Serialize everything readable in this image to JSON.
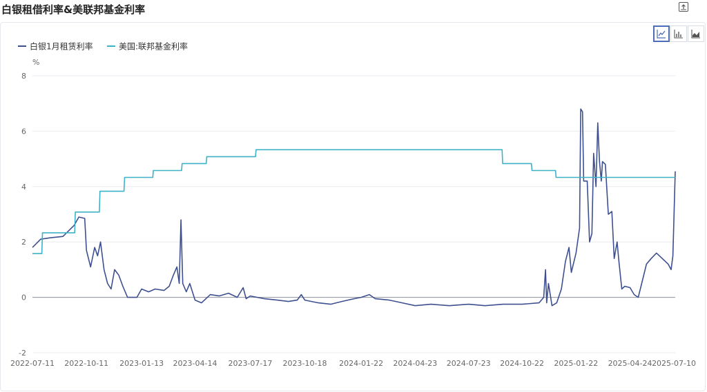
{
  "header": {
    "title": "白银租借利率&美联邦基金利率",
    "export_icon": "export-icon"
  },
  "view_switches": [
    {
      "icon": "line-chart-icon",
      "active": true
    },
    {
      "icon": "bar-chart-icon",
      "active": false
    },
    {
      "icon": "area-chart-icon",
      "active": false
    }
  ],
  "chart_data": {
    "type": "line",
    "title": "白银租借利率&美联邦基金利率",
    "ylabel": "%",
    "ylim": [
      -2,
      8
    ],
    "yticks": [
      "-2",
      "0",
      "2",
      "4",
      "6",
      "8"
    ],
    "xlabels": [
      "2022-07-11",
      "2022-10-11",
      "2023-01-13",
      "2023-04-14",
      "2023-07-17",
      "2023-10-18",
      "2024-01-22",
      "2024-04-23",
      "2024-07-23",
      "2024-10-22",
      "2025-01-22",
      "2025-04-24",
      "2025-07-10"
    ],
    "grid": true,
    "legend_position": "top-left",
    "series": [
      {
        "name": "白银1月租赁利率",
        "color": "#3d4f8f",
        "points": [
          [
            "2022-07-11",
            1.8
          ],
          [
            "2022-07-25",
            2.1
          ],
          [
            "2022-08-10",
            2.15
          ],
          [
            "2022-09-01",
            2.2
          ],
          [
            "2022-09-20",
            2.6
          ],
          [
            "2022-09-28",
            2.9
          ],
          [
            "2022-10-08",
            2.85
          ],
          [
            "2022-10-11",
            1.7
          ],
          [
            "2022-10-18",
            1.1
          ],
          [
            "2022-10-25",
            1.8
          ],
          [
            "2022-10-30",
            1.5
          ],
          [
            "2022-11-04",
            2.0
          ],
          [
            "2022-11-10",
            1.0
          ],
          [
            "2022-11-16",
            0.5
          ],
          [
            "2022-11-22",
            0.3
          ],
          [
            "2022-11-28",
            1.0
          ],
          [
            "2022-12-05",
            0.8
          ],
          [
            "2022-12-12",
            0.4
          ],
          [
            "2022-12-20",
            0.0
          ],
          [
            "2023-01-05",
            0.0
          ],
          [
            "2023-01-13",
            0.3
          ],
          [
            "2023-01-25",
            0.2
          ],
          [
            "2023-02-05",
            0.3
          ],
          [
            "2023-02-20",
            0.25
          ],
          [
            "2023-03-01",
            0.4
          ],
          [
            "2023-03-08",
            0.8
          ],
          [
            "2023-03-14",
            1.1
          ],
          [
            "2023-03-18",
            0.5
          ],
          [
            "2023-03-21",
            2.8
          ],
          [
            "2023-03-24",
            0.5
          ],
          [
            "2023-03-30",
            0.2
          ],
          [
            "2023-04-05",
            0.5
          ],
          [
            "2023-04-14",
            -0.1
          ],
          [
            "2023-04-25",
            -0.2
          ],
          [
            "2023-05-10",
            0.1
          ],
          [
            "2023-05-25",
            0.05
          ],
          [
            "2023-06-10",
            0.15
          ],
          [
            "2023-06-25",
            0.0
          ],
          [
            "2023-07-05",
            0.35
          ],
          [
            "2023-07-10",
            -0.05
          ],
          [
            "2023-07-17",
            0.05
          ],
          [
            "2023-08-10",
            -0.05
          ],
          [
            "2023-09-01",
            -0.1
          ],
          [
            "2023-09-20",
            -0.15
          ],
          [
            "2023-10-05",
            -0.1
          ],
          [
            "2023-10-12",
            0.1
          ],
          [
            "2023-10-18",
            -0.1
          ],
          [
            "2023-11-10",
            -0.2
          ],
          [
            "2023-12-01",
            -0.25
          ],
          [
            "2023-12-20",
            -0.15
          ],
          [
            "2024-01-10",
            -0.05
          ],
          [
            "2024-01-22",
            0.0
          ],
          [
            "2024-02-05",
            0.1
          ],
          [
            "2024-02-15",
            -0.05
          ],
          [
            "2024-03-10",
            -0.1
          ],
          [
            "2024-04-01",
            -0.2
          ],
          [
            "2024-04-23",
            -0.3
          ],
          [
            "2024-05-20",
            -0.25
          ],
          [
            "2024-06-20",
            -0.3
          ],
          [
            "2024-07-23",
            -0.25
          ],
          [
            "2024-08-20",
            -0.3
          ],
          [
            "2024-09-20",
            -0.25
          ],
          [
            "2024-10-22",
            -0.25
          ],
          [
            "2024-11-20",
            -0.2
          ],
          [
            "2024-11-28",
            0.0
          ],
          [
            "2024-12-01",
            1.0
          ],
          [
            "2024-12-03",
            -0.2
          ],
          [
            "2024-12-06",
            0.5
          ],
          [
            "2024-12-12",
            -0.3
          ],
          [
            "2024-12-20",
            -0.2
          ],
          [
            "2024-12-28",
            0.3
          ],
          [
            "2025-01-04",
            1.3
          ],
          [
            "2025-01-10",
            1.8
          ],
          [
            "2025-01-14",
            0.9
          ],
          [
            "2025-01-22",
            1.6
          ],
          [
            "2025-01-28",
            2.5
          ],
          [
            "2025-01-30",
            6.8
          ],
          [
            "2025-02-02",
            6.7
          ],
          [
            "2025-02-04",
            4.2
          ],
          [
            "2025-02-10",
            4.2
          ],
          [
            "2025-02-14",
            2.0
          ],
          [
            "2025-02-18",
            2.3
          ],
          [
            "2025-02-21",
            5.2
          ],
          [
            "2025-02-25",
            4.0
          ],
          [
            "2025-02-28",
            6.3
          ],
          [
            "2025-03-03",
            4.9
          ],
          [
            "2025-03-06",
            4.2
          ],
          [
            "2025-03-08",
            4.9
          ],
          [
            "2025-03-13",
            4.8
          ],
          [
            "2025-03-18",
            3.0
          ],
          [
            "2025-03-24",
            3.1
          ],
          [
            "2025-03-28",
            1.4
          ],
          [
            "2025-04-02",
            2.0
          ],
          [
            "2025-04-05",
            1.3
          ],
          [
            "2025-04-10",
            0.3
          ],
          [
            "2025-04-15",
            0.4
          ],
          [
            "2025-04-24",
            0.35
          ],
          [
            "2025-05-01",
            0.1
          ],
          [
            "2025-05-08",
            0.0
          ],
          [
            "2025-05-15",
            0.6
          ],
          [
            "2025-05-22",
            1.2
          ],
          [
            "2025-05-30",
            1.4
          ],
          [
            "2025-06-08",
            1.6
          ],
          [
            "2025-06-18",
            1.4
          ],
          [
            "2025-06-28",
            1.2
          ],
          [
            "2025-07-03",
            1.0
          ],
          [
            "2025-07-06",
            1.5
          ],
          [
            "2025-07-10",
            4.55
          ]
        ]
      },
      {
        "name": "美国:联邦基金利率",
        "color": "#3bb3c6",
        "points": [
          [
            "2022-07-11",
            1.58
          ],
          [
            "2022-07-27",
            1.58
          ],
          [
            "2022-07-28",
            2.33
          ],
          [
            "2022-09-21",
            2.33
          ],
          [
            "2022-09-22",
            3.08
          ],
          [
            "2022-11-02",
            3.08
          ],
          [
            "2022-11-03",
            3.83
          ],
          [
            "2022-12-14",
            3.83
          ],
          [
            "2022-12-15",
            4.33
          ],
          [
            "2023-02-01",
            4.33
          ],
          [
            "2023-02-02",
            4.58
          ],
          [
            "2023-03-22",
            4.58
          ],
          [
            "2023-03-23",
            4.83
          ],
          [
            "2023-05-03",
            4.83
          ],
          [
            "2023-05-04",
            5.08
          ],
          [
            "2023-07-26",
            5.08
          ],
          [
            "2023-07-27",
            5.33
          ],
          [
            "2024-09-18",
            5.33
          ],
          [
            "2024-09-19",
            4.83
          ],
          [
            "2024-11-07",
            4.83
          ],
          [
            "2024-11-08",
            4.58
          ],
          [
            "2024-12-18",
            4.58
          ],
          [
            "2024-12-19",
            4.33
          ],
          [
            "2025-07-10",
            4.33
          ]
        ]
      }
    ]
  }
}
